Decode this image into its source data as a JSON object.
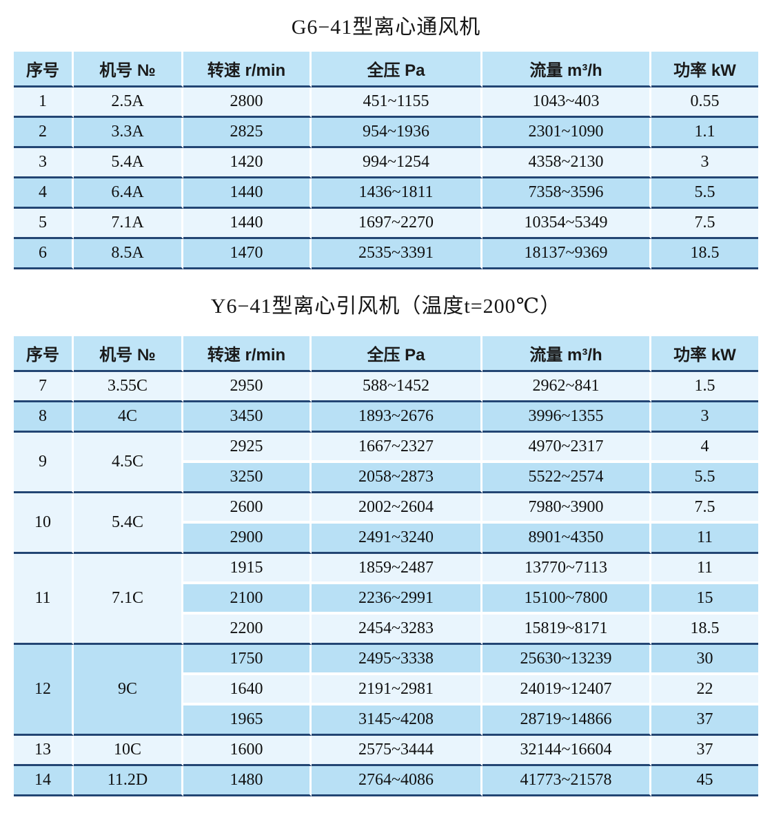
{
  "colors": {
    "row_light": "#e9f5fd",
    "row_dark": "#b8e0f5",
    "header_bg": "#bfe4f7",
    "border_navy": "#224573",
    "separator_white": "#ffffff",
    "text": "#141414"
  },
  "table1": {
    "title": "G6−41型离心通风机",
    "headers": [
      "序号",
      "机号 №",
      "转速 r/min",
      "全压 Pa",
      "流量 m³/h",
      "功率 kW"
    ],
    "groups": [
      {
        "no": "1",
        "model": "2.5A",
        "rows": [
          [
            "2800",
            "451~1155",
            "1043~403",
            "0.55"
          ]
        ]
      },
      {
        "no": "2",
        "model": "3.3A",
        "rows": [
          [
            "2825",
            "954~1936",
            "2301~1090",
            "1.1"
          ]
        ]
      },
      {
        "no": "3",
        "model": "5.4A",
        "rows": [
          [
            "1420",
            "994~1254",
            "4358~2130",
            "3"
          ]
        ]
      },
      {
        "no": "4",
        "model": "6.4A",
        "rows": [
          [
            "1440",
            "1436~1811",
            "7358~3596",
            "5.5"
          ]
        ]
      },
      {
        "no": "5",
        "model": "7.1A",
        "rows": [
          [
            "1440",
            "1697~2270",
            "10354~5349",
            "7.5"
          ]
        ]
      },
      {
        "no": "6",
        "model": "8.5A",
        "rows": [
          [
            "1470",
            "2535~3391",
            "18137~9369",
            "18.5"
          ]
        ]
      }
    ]
  },
  "table2": {
    "title": "Y6−41型离心引风机（温度t=200℃）",
    "headers": [
      "序号",
      "机号 №",
      "转速 r/min",
      "全压 Pa",
      "流量 m³/h",
      "功率 kW"
    ],
    "groups": [
      {
        "no": "7",
        "model": "3.55C",
        "rows": [
          [
            "2950",
            "588~1452",
            "2962~841",
            "1.5"
          ]
        ]
      },
      {
        "no": "8",
        "model": "4C",
        "rows": [
          [
            "3450",
            "1893~2676",
            "3996~1355",
            "3"
          ]
        ]
      },
      {
        "no": "9",
        "model": "4.5C",
        "rows": [
          [
            "2925",
            "1667~2327",
            "4970~2317",
            "4"
          ],
          [
            "3250",
            "2058~2873",
            "5522~2574",
            "5.5"
          ]
        ]
      },
      {
        "no": "10",
        "model": "5.4C",
        "rows": [
          [
            "2600",
            "2002~2604",
            "7980~3900",
            "7.5"
          ],
          [
            "2900",
            "2491~3240",
            "8901~4350",
            "11"
          ]
        ]
      },
      {
        "no": "11",
        "model": "7.1C",
        "rows": [
          [
            "1915",
            "1859~2487",
            "13770~7113",
            "11"
          ],
          [
            "2100",
            "2236~2991",
            "15100~7800",
            "15"
          ],
          [
            "2200",
            "2454~3283",
            "15819~8171",
            "18.5"
          ]
        ]
      },
      {
        "no": "12",
        "model": "9C",
        "rows": [
          [
            "1750",
            "2495~3338",
            "25630~13239",
            "30"
          ],
          [
            "1640",
            "2191~2981",
            "24019~12407",
            "22"
          ],
          [
            "1965",
            "3145~4208",
            "28719~14866",
            "37"
          ]
        ]
      },
      {
        "no": "13",
        "model": "10C",
        "rows": [
          [
            "1600",
            "2575~3444",
            "32144~16604",
            "37"
          ]
        ]
      },
      {
        "no": "14",
        "model": "11.2D",
        "rows": [
          [
            "1480",
            "2764~4086",
            "41773~21578",
            "45"
          ]
        ]
      }
    ]
  }
}
